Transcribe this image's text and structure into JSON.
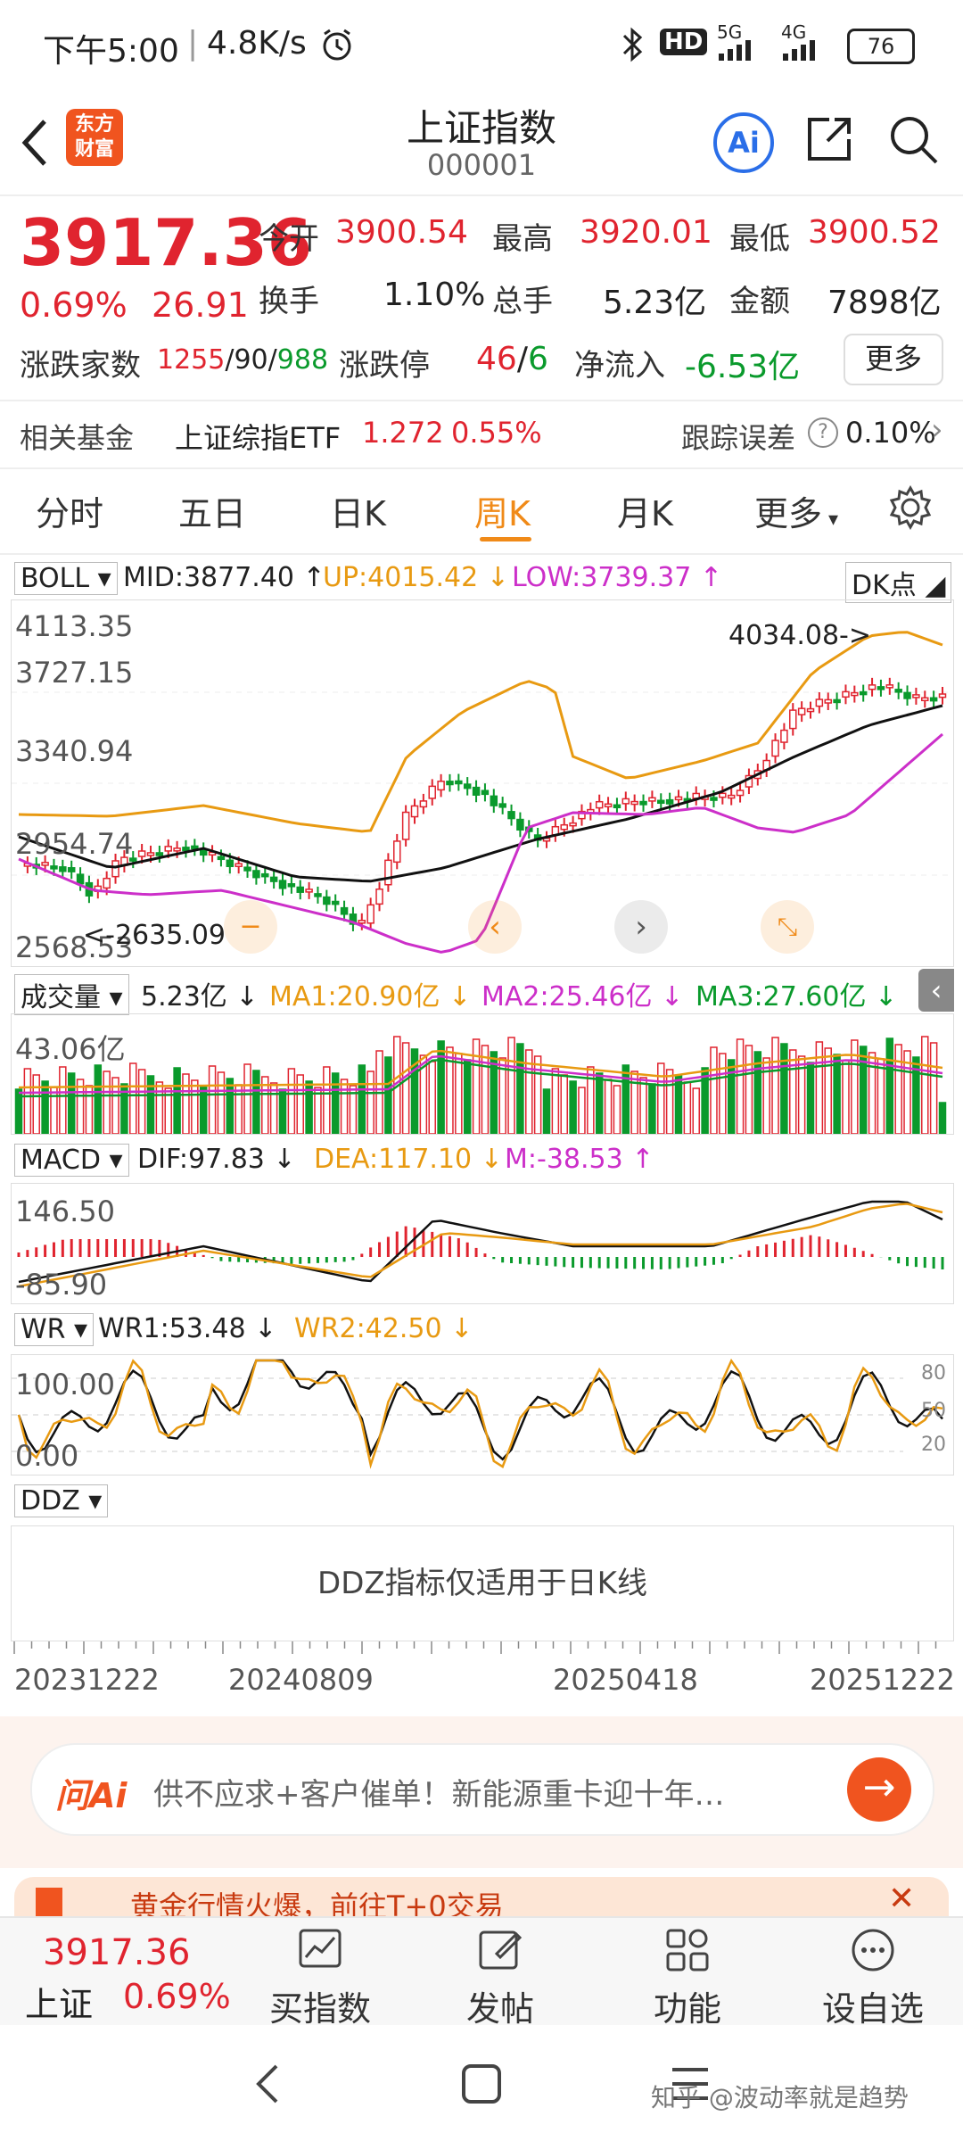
{
  "status": {
    "time": "下午5:00",
    "speed": "4.8K/s",
    "network_hd": "HD",
    "net1": "5G",
    "net2": "4G",
    "battery": "76"
  },
  "header": {
    "logo_text": "东方财富",
    "title": "上证指数",
    "code": "000001",
    "ai_label": "Ai"
  },
  "quote": {
    "price": "3917.36",
    "pct": "0.69%",
    "change": "26.91",
    "open_label": "今开",
    "open": "3900.54",
    "high_label": "最高",
    "high": "3920.01",
    "low_label": "最低",
    "low": "3900.52",
    "turnover_label": "换手",
    "turnover": "1.10%",
    "volume_label": "总手",
    "volume": "5.23亿",
    "amount_label": "金额",
    "amount": "7898亿",
    "breadth_label": "涨跌家数",
    "breadth_up": "1255",
    "breadth_flat": "90",
    "breadth_down": "988",
    "limit_label": "涨跌停",
    "limit_up": "46",
    "limit_down": "6",
    "netflow_label": "净流入",
    "netflow": "-6.53亿",
    "more": "更多"
  },
  "fund": {
    "label": "相关基金",
    "name": "上证综指ETF",
    "price": "1.272",
    "pct": "0.55%",
    "err_label": "跟踪误差",
    "err": "0.10%"
  },
  "tabs": [
    "分时",
    "五日",
    "日K",
    "周K",
    "月K",
    "更多"
  ],
  "boll": {
    "name": "BOLL",
    "mid": "MID:3877.40",
    "up": "UP:4015.42",
    "low": "LOW:3739.37",
    "dk": "DK点",
    "y_labels": [
      "4113.35",
      "3727.15",
      "3340.94",
      "2954.74",
      "2568.53"
    ],
    "max_annot": "4034.08->",
    "min_annot": "<-2635.09"
  },
  "volume": {
    "name": "成交量",
    "current": "5.23亿",
    "ma1": "MA1:20.90亿",
    "ma2": "MA2:25.46亿",
    "ma3": "MA3:27.60亿",
    "y_label": "43.06亿"
  },
  "macd": {
    "name": "MACD",
    "dif": "DIF:97.83",
    "dea": "DEA:117.10",
    "m": "M:-38.53",
    "y_top": "146.50",
    "y_bot": "-85.90"
  },
  "wr": {
    "name": "WR",
    "wr1": "WR1:53.48",
    "wr2": "WR2:42.50",
    "y_top": "100.00",
    "y_bot": "0.00",
    "r80": "80",
    "r50": "50",
    "r20": "20"
  },
  "ddz": {
    "name": "DDZ",
    "notice": "DDZ指标仅适用于日K线"
  },
  "dates": [
    "20231222",
    "20240809",
    "20250418",
    "20251222"
  ],
  "ai_bar": {
    "logo": "问Ai",
    "text": "供不应求+客户催单！新能源重卡迎十年…"
  },
  "banner": {
    "text": "黄金行情火爆，前往T+0交易"
  },
  "bottom": {
    "price": "3917.36",
    "market": "上证",
    "pct": "0.69%",
    "items": [
      "买指数",
      "发帖",
      "功能",
      "设自选"
    ]
  },
  "watermark": "知乎 @波动率就是趋势",
  "colors": {
    "up": "#e0242f",
    "down": "#0a9a2c",
    "accent": "#f08a18",
    "mid": "#111111",
    "upper": "#e89a12",
    "lower": "#cc2fc9"
  }
}
